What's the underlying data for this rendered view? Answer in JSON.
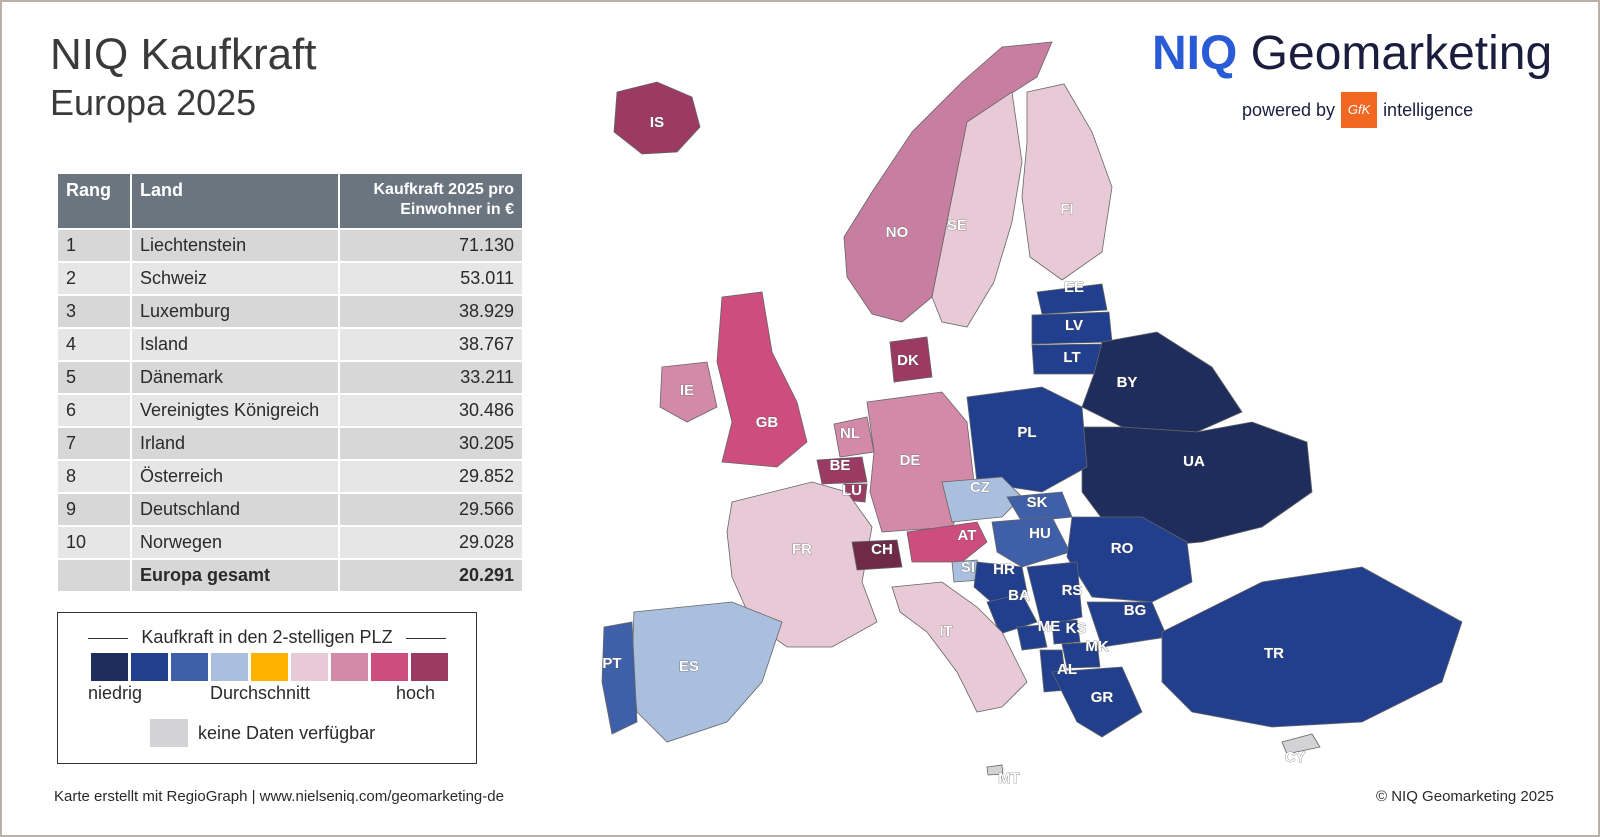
{
  "header": {
    "title": "NIQ Kaufkraft",
    "subtitle": "Europa 2025",
    "brand_bold": "NIQ",
    "brand_rest": " Geomarketing",
    "powered_by": "powered by",
    "gfk_logo": "GfK",
    "intelligence": "intelligence"
  },
  "table": {
    "headers": {
      "rank": "Rang",
      "country": "Land",
      "value": "Kaufkraft 2025 pro Einwohner in €"
    },
    "rows": [
      {
        "rank": "1",
        "country": "Liechtenstein",
        "value": "71.130"
      },
      {
        "rank": "2",
        "country": "Schweiz",
        "value": "53.011"
      },
      {
        "rank": "3",
        "country": "Luxemburg",
        "value": "38.929"
      },
      {
        "rank": "4",
        "country": "Island",
        "value": "38.767"
      },
      {
        "rank": "5",
        "country": "Dänemark",
        "value": "33.211"
      },
      {
        "rank": "6",
        "country": "Vereinigtes Königreich",
        "value": "30.486"
      },
      {
        "rank": "7",
        "country": "Irland",
        "value": "30.205"
      },
      {
        "rank": "8",
        "country": "Österreich",
        "value": "29.852"
      },
      {
        "rank": "9",
        "country": "Deutschland",
        "value": "29.566"
      },
      {
        "rank": "10",
        "country": "Norwegen",
        "value": "29.028"
      }
    ],
    "total": {
      "country": "Europa gesamt",
      "value": "20.291"
    }
  },
  "legend": {
    "title": "Kaufkraft in den 2-stelligen PLZ",
    "colors": [
      "#1f2d5c",
      "#213f8c",
      "#3f5fa8",
      "#a9bfdd",
      "#ffb300",
      "#e8c9d6",
      "#d38aa8",
      "#cc4d7e",
      "#9b3a63"
    ],
    "low": "niedrig",
    "mid": "Durchschnitt",
    "high": "hoch",
    "nodata_color": "#d3d3d6",
    "nodata": "keine Daten verfügbar"
  },
  "footer": {
    "left": "Karte erstellt mit RegioGraph | www.nielseniq.com/geomarketing-de",
    "right": "© NIQ Geomarketing 2025"
  },
  "map": {
    "countries": [
      {
        "code": "IS",
        "color": "#9b3a63"
      },
      {
        "code": "NO",
        "color": "#c77ea0"
      },
      {
        "code": "SE",
        "color": "#e8c9d6"
      },
      {
        "code": "FI",
        "color": "#e8c9d6"
      },
      {
        "code": "EE",
        "color": "#213f8c"
      },
      {
        "code": "LV",
        "color": "#213f8c"
      },
      {
        "code": "LT",
        "color": "#213f8c"
      },
      {
        "code": "BY",
        "color": "#1f2d5c"
      },
      {
        "code": "UA",
        "color": "#1f2d5c"
      },
      {
        "code": "IE",
        "color": "#d38aa8"
      },
      {
        "code": "GB",
        "color": "#cc4d7e"
      },
      {
        "code": "DK",
        "color": "#9b3a63"
      },
      {
        "code": "NL",
        "color": "#d38aa8"
      },
      {
        "code": "BE",
        "color": "#9b3a63"
      },
      {
        "code": "LU",
        "color": "#9b3a63"
      },
      {
        "code": "DE",
        "color": "#d38aa8"
      },
      {
        "code": "PL",
        "color": "#213f8c"
      },
      {
        "code": "CZ",
        "color": "#a9bfdd"
      },
      {
        "code": "SK",
        "color": "#3f5fa8"
      },
      {
        "code": "FR",
        "color": "#e8c9d6"
      },
      {
        "code": "CH",
        "color": "#6e2a47"
      },
      {
        "code": "AT",
        "color": "#cc4d7e"
      },
      {
        "code": "HU",
        "color": "#3f5fa8"
      },
      {
        "code": "SI",
        "color": "#a9bfdd"
      },
      {
        "code": "RO",
        "color": "#213f8c"
      },
      {
        "code": "HR",
        "color": "#213f8c"
      },
      {
        "code": "BA",
        "color": "#213f8c"
      },
      {
        "code": "RS",
        "color": "#213f8c"
      },
      {
        "code": "BG",
        "color": "#213f8c"
      },
      {
        "code": "ME",
        "color": "#213f8c"
      },
      {
        "code": "KS",
        "color": "#213f8c"
      },
      {
        "code": "MK",
        "color": "#213f8c"
      },
      {
        "code": "AL",
        "color": "#213f8c"
      },
      {
        "code": "GR",
        "color": "#213f8c"
      },
      {
        "code": "TR",
        "color": "#213f8c"
      },
      {
        "code": "IT",
        "color": "#e8c9d6"
      },
      {
        "code": "ES",
        "color": "#a9bfdd"
      },
      {
        "code": "PT",
        "color": "#3f5fa8"
      },
      {
        "code": "MT",
        "color": "#d3d3d6"
      },
      {
        "code": "CY",
        "color": "#d3d3d6"
      }
    ]
  }
}
